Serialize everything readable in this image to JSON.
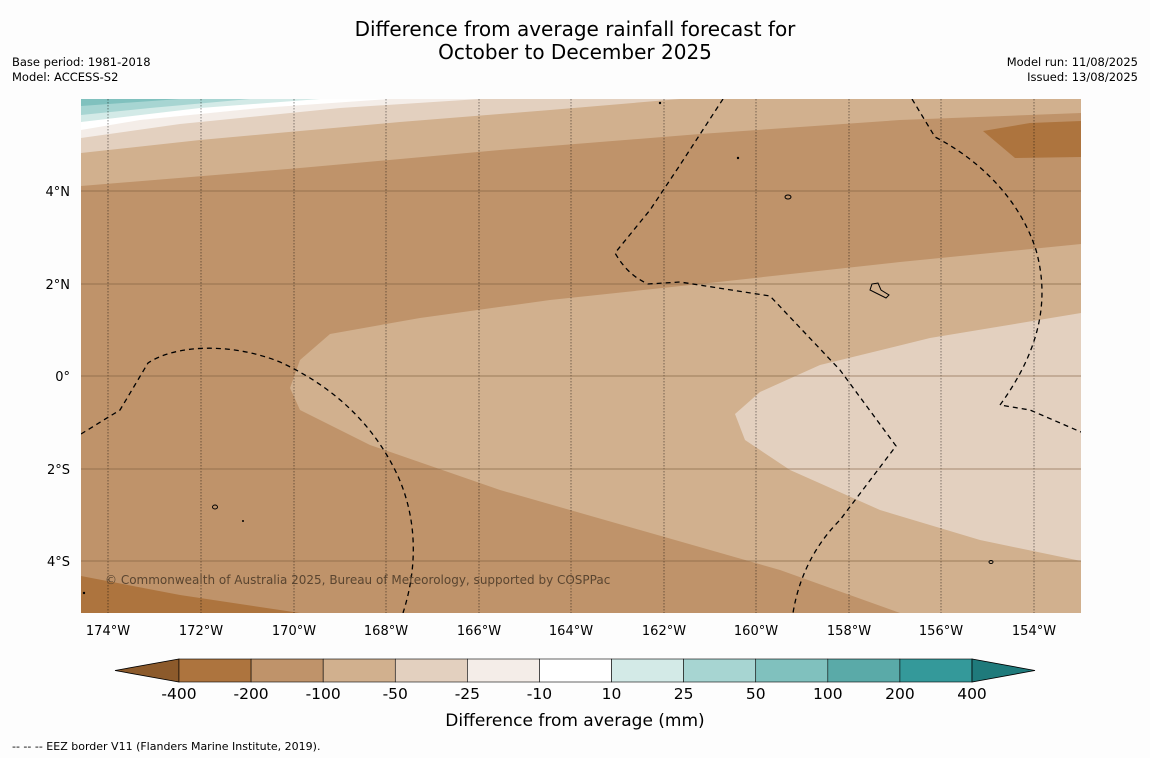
{
  "title_line1": "Difference from average rainfall forecast for",
  "title_line2": "October to December 2025",
  "meta_left": {
    "base_period": "Base period: 1981-2018",
    "model": "Model: ACCESS-S2"
  },
  "meta_right": {
    "model_run": "Model run: 11/08/2025",
    "issued": "Issued: 13/08/2025"
  },
  "map": {
    "lat_labels": [
      "4°N",
      "2°N",
      "0°",
      "2°S",
      "4°S"
    ],
    "lon_labels": [
      "174°W",
      "172°W",
      "170°W",
      "168°W",
      "166°W",
      "164°W",
      "162°W",
      "160°W",
      "158°W",
      "156°W",
      "154°W"
    ],
    "copyright": "© Commonwealth of Australia 2025, Bureau of Meteorology, supported by COSPPac"
  },
  "legend": {
    "title": "Difference from average (mm)",
    "tick_labels": [
      "-400",
      "-200",
      "-100",
      "-50",
      "-25",
      "-10",
      "10",
      "25",
      "50",
      "100",
      "200",
      "400"
    ],
    "colors": [
      "#8c5a2b",
      "#ad743e",
      "#bf936a",
      "#d1b08e",
      "#e3d0bf",
      "#f4ede8",
      "#ffffff",
      "#d3eae7",
      "#a7d5d2",
      "#80c1be",
      "#5aaaa8",
      "#34999a",
      "#1f7a7b"
    ]
  },
  "footer": "--  --  -- EEZ border V11 (Flanders Marine Institute, 2019)."
}
